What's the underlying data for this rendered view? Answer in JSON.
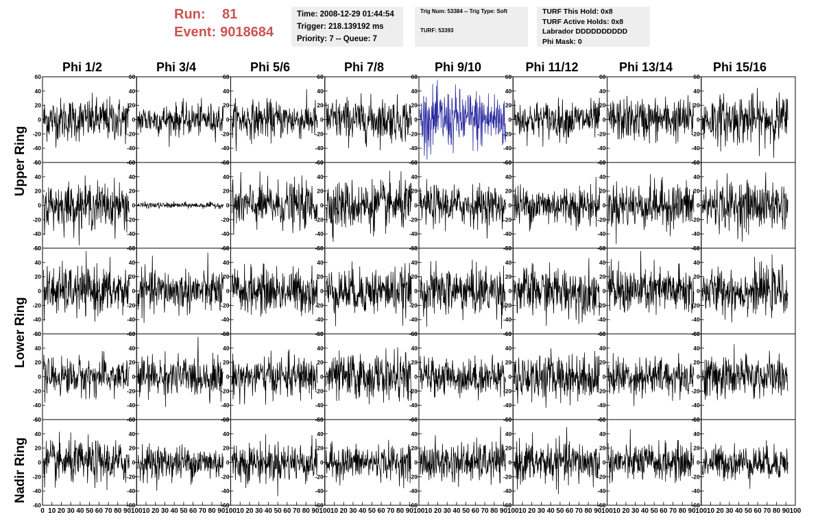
{
  "header": {
    "run_label": "Run:",
    "run_value": "81",
    "event_label": "Event:",
    "event_value": "9018684"
  },
  "info_box_1": {
    "time": "Time: 2008-12-29 01:44:54",
    "trigger": "Trigger: 218.139192 ms",
    "priority": "Priority: 7 -- Queue: 7"
  },
  "info_box_2": {
    "trig": "Trig Num: 53384 -- Trig Type: Soft",
    "turf": "TURF: 53393"
  },
  "info_box_3": {
    "hold": "TURF This Hold: 0x8",
    "active": "TURF Active Holds: 0x8",
    "labrador": "Labrador DDDDDDDDDD",
    "phimask": "Phi Mask: 0"
  },
  "columns": [
    "Phi 1/2",
    "Phi 3/4",
    "Phi 5/6",
    "Phi 7/8",
    "Phi 9/10",
    "Phi 11/12",
    "Phi 13/14",
    "Phi 15/16"
  ],
  "row_labels": {
    "upper": "Upper Ring",
    "lower": "Lower Ring",
    "nadir": "Nadir Ring"
  },
  "chart_data": {
    "type": "line",
    "layout": "grid 5 rows x 8 columns of waveform panels",
    "ylim": [
      -60,
      60
    ],
    "y_ticks": [
      "60",
      "40",
      "20",
      "0",
      "-20",
      "-40",
      "-60"
    ],
    "xlim": [
      0,
      100
    ],
    "x_ticks_first": [
      "0",
      "10",
      "20",
      "30",
      "40",
      "50",
      "60",
      "70",
      "80",
      "90",
      "100"
    ],
    "x_ticks_other": [
      "10",
      "20",
      "30",
      "40",
      "50",
      "60",
      "70",
      "80",
      "90",
      "100"
    ],
    "samples_per_trace": 256,
    "default_color": "#000000",
    "highlight_color": "#2b2ba0",
    "panels": [
      {
        "row": 0,
        "col": 0,
        "amp": 15,
        "highlight": false
      },
      {
        "row": 0,
        "col": 1,
        "amp": 11,
        "highlight": false
      },
      {
        "row": 0,
        "col": 2,
        "amp": 13,
        "highlight": false
      },
      {
        "row": 0,
        "col": 3,
        "amp": 15,
        "highlight": false
      },
      {
        "row": 0,
        "col": 4,
        "amp": 21,
        "highlight": true
      },
      {
        "row": 0,
        "col": 5,
        "amp": 13,
        "highlight": false
      },
      {
        "row": 0,
        "col": 6,
        "amp": 15,
        "highlight": false
      },
      {
        "row": 0,
        "col": 7,
        "amp": 17,
        "highlight": false
      },
      {
        "row": 1,
        "col": 0,
        "amp": 16,
        "highlight": false
      },
      {
        "row": 1,
        "col": 1,
        "amp": 2,
        "highlight": false
      },
      {
        "row": 1,
        "col": 2,
        "amp": 16,
        "highlight": false
      },
      {
        "row": 1,
        "col": 3,
        "amp": 17,
        "highlight": false
      },
      {
        "row": 1,
        "col": 4,
        "amp": 14,
        "highlight": false
      },
      {
        "row": 1,
        "col": 5,
        "amp": 14,
        "highlight": false
      },
      {
        "row": 1,
        "col": 6,
        "amp": 16,
        "highlight": false
      },
      {
        "row": 1,
        "col": 7,
        "amp": 17,
        "highlight": false
      },
      {
        "row": 2,
        "col": 0,
        "amp": 17,
        "highlight": false
      },
      {
        "row": 2,
        "col": 1,
        "amp": 15,
        "highlight": false
      },
      {
        "row": 2,
        "col": 2,
        "amp": 16,
        "highlight": false
      },
      {
        "row": 2,
        "col": 3,
        "amp": 16,
        "highlight": false
      },
      {
        "row": 2,
        "col": 4,
        "amp": 17,
        "highlight": false
      },
      {
        "row": 2,
        "col": 5,
        "amp": 17,
        "highlight": false
      },
      {
        "row": 2,
        "col": 6,
        "amp": 17,
        "highlight": false
      },
      {
        "row": 2,
        "col": 7,
        "amp": 16,
        "highlight": false
      },
      {
        "row": 3,
        "col": 0,
        "amp": 13,
        "highlight": false
      },
      {
        "row": 3,
        "col": 1,
        "amp": 14,
        "highlight": false
      },
      {
        "row": 3,
        "col": 2,
        "amp": 14,
        "highlight": false
      },
      {
        "row": 3,
        "col": 3,
        "amp": 16,
        "highlight": false
      },
      {
        "row": 3,
        "col": 4,
        "amp": 13,
        "highlight": false
      },
      {
        "row": 3,
        "col": 5,
        "amp": 16,
        "highlight": false
      },
      {
        "row": 3,
        "col": 6,
        "amp": 14,
        "highlight": false
      },
      {
        "row": 3,
        "col": 7,
        "amp": 15,
        "highlight": false
      },
      {
        "row": 4,
        "col": 0,
        "amp": 15,
        "highlight": false
      },
      {
        "row": 4,
        "col": 1,
        "amp": 12,
        "highlight": false
      },
      {
        "row": 4,
        "col": 2,
        "amp": 14,
        "highlight": false
      },
      {
        "row": 4,
        "col": 3,
        "amp": 12,
        "highlight": false
      },
      {
        "row": 4,
        "col": 4,
        "amp": 14,
        "highlight": false
      },
      {
        "row": 4,
        "col": 5,
        "amp": 15,
        "highlight": false
      },
      {
        "row": 4,
        "col": 6,
        "amp": 13,
        "highlight": false
      },
      {
        "row": 4,
        "col": 7,
        "amp": 12,
        "highlight": false
      }
    ]
  }
}
